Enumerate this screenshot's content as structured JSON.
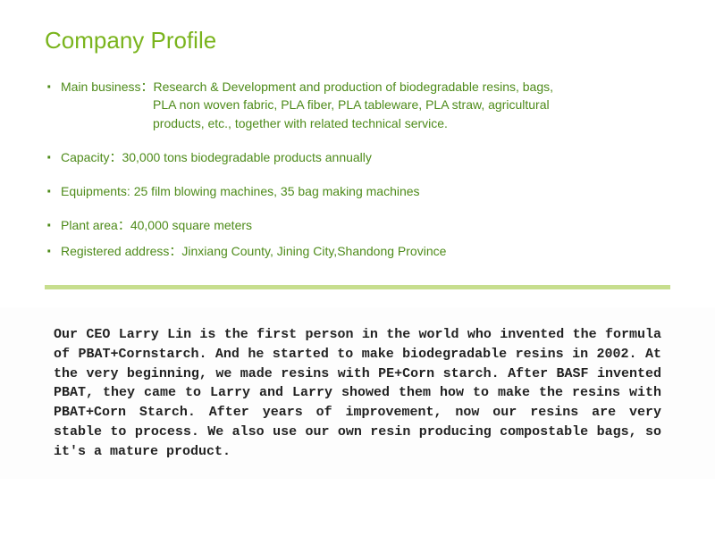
{
  "title": "Company Profile",
  "colors": {
    "title_color": "#7ab41d",
    "bullet_text_color": "#4e8b1a",
    "divider_color": "#c7de8e",
    "description_color": "#222222",
    "background_color": "#ffffff"
  },
  "typography": {
    "title_fontsize": 26,
    "bullet_fontsize": 14,
    "description_fontsize": 15
  },
  "bullets": [
    {
      "label": "Main business：",
      "text": "Research & Development and production of biodegradable resins, bags,",
      "continuation1": "PLA non woven fabric, PLA fiber,  PLA tableware, PLA straw,  agricultural",
      "continuation2": "products, etc., together with related technical service.",
      "tight": false
    },
    {
      "label": "Capacity：",
      "text": "30,000 tons biodegradable products annually",
      "tight": false
    },
    {
      "label": "Equipments:  ",
      "text": "25 film blowing machines, 35 bag making machines",
      "tight": false
    },
    {
      "label": "Plant area：",
      "text": "40,000 square meters",
      "tight": true
    },
    {
      "label": "Registered address：",
      "text": "Jinxiang County, Jining City,Shandong Province",
      "tight": false
    }
  ],
  "description": "Our CEO Larry Lin is the first person in the world who invented the formula of PBAT+Cornstarch. And he started to make biodegradable resins in 2002. At the very beginning, we made resins with PE+Corn starch. After BASF invented PBAT, they came to Larry and Larry showed them how to make the resins with PBAT+Corn Starch. After years of improvement, now our resins are very stable to process. We also use our own resin producing compostable bags, so it's a mature product."
}
